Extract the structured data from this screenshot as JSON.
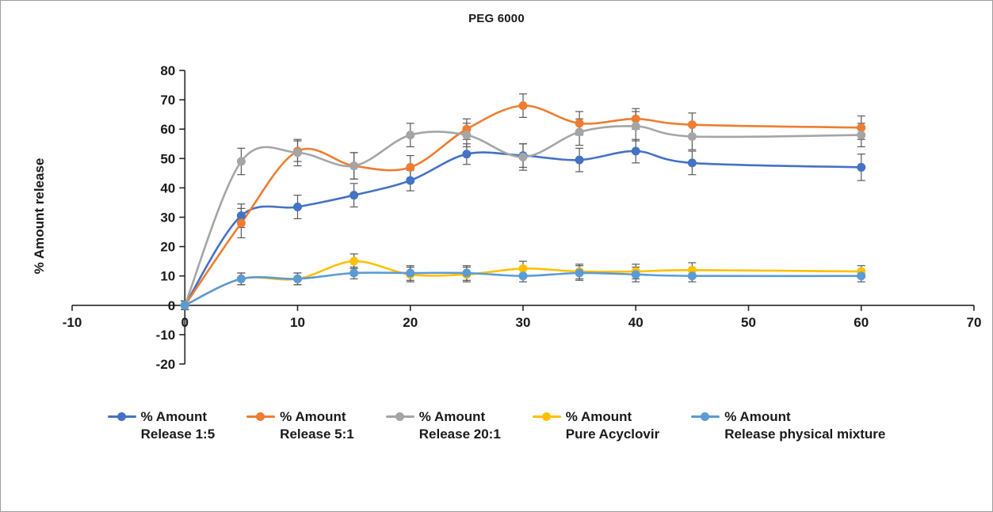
{
  "chart_data": {
    "type": "line",
    "title": "PEG 6000",
    "xlabel": "",
    "ylabel": "% Amount release",
    "xlim": [
      -10,
      70
    ],
    "ylim": [
      -20,
      80
    ],
    "xticks": [
      -10,
      0,
      10,
      20,
      30,
      40,
      50,
      60,
      70
    ],
    "yticks": [
      -20,
      -10,
      0,
      10,
      20,
      30,
      40,
      50,
      60,
      70,
      80
    ],
    "grid": false,
    "legend_position": "bottom",
    "x": [
      0,
      5,
      10,
      15,
      20,
      25,
      30,
      35,
      40,
      45,
      60
    ],
    "series": [
      {
        "name": "% Amount Release 1:5",
        "label_line1": "% Amount",
        "label_line2": "Release 1:5",
        "color": "#4472C4",
        "values": [
          0,
          30.5,
          33.5,
          37.5,
          42.5,
          51.5,
          51,
          49.5,
          52.5,
          48.5,
          47
        ],
        "errors": [
          1.5,
          4,
          4,
          4,
          3.5,
          3.5,
          4,
          4,
          4,
          4,
          4.5
        ]
      },
      {
        "name": "% Amount Release 5:1",
        "label_line1": "% Amount",
        "label_line2": "Release 5:1",
        "color": "#ED7D31",
        "values": [
          0,
          28,
          52.5,
          47.5,
          47,
          60,
          68,
          62,
          63.5,
          61.5,
          60.5
        ],
        "errors": [
          1.5,
          5,
          3.5,
          4.5,
          4,
          3.5,
          4,
          4,
          3.5,
          4,
          4
        ]
      },
      {
        "name": "% Amount Release 20:1",
        "label_line1": "% Amount",
        "label_line2": "Release 20:1",
        "color": "#A5A5A5",
        "values": [
          0,
          49,
          52,
          47.5,
          58,
          58,
          50.5,
          59,
          61,
          57.5,
          58
        ],
        "errors": [
          1.5,
          4.5,
          4.5,
          4.5,
          4,
          4,
          4.5,
          4.5,
          5,
          4.5,
          4
        ]
      },
      {
        "name": "% Amount Pure Acyclovir",
        "label_line1": "% Amount",
        "label_line2": "Pure Acyclovir",
        "color": "#FFC000",
        "values": [
          0,
          9,
          9,
          15,
          10.5,
          10.5,
          12.5,
          11.5,
          11.5,
          12,
          11.5
        ],
        "errors": [
          1.5,
          2,
          2,
          2.5,
          2.5,
          2.5,
          2.5,
          2.5,
          2.5,
          2.5,
          2
        ]
      },
      {
        "name": "% Amount Release physical mixture",
        "label_line1": "% Amount",
        "label_line2": "Release physical mixture",
        "color": "#5B9BD5",
        "values": [
          0,
          9,
          9,
          11,
          11,
          11,
          10,
          11,
          10.5,
          10,
          10
        ],
        "errors": [
          1.5,
          2,
          2,
          2,
          2.5,
          2.5,
          2,
          2.5,
          2.5,
          2,
          2
        ]
      }
    ],
    "axis_color": "#262626",
    "error_bar_color": "#595959"
  }
}
